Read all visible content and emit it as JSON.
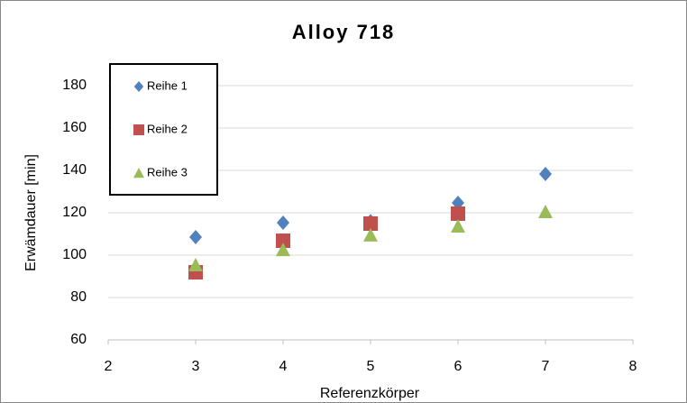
{
  "chart_data": {
    "type": "scatter",
    "title": "Alloy 718",
    "x_label": "Referenzkörper",
    "y_label": "Erwämdauer [min]",
    "xlim": [
      2,
      8
    ],
    "xticks": [
      2,
      3,
      4,
      5,
      6,
      7,
      8
    ],
    "ylim": [
      60,
      200
    ],
    "yticks": [
      60,
      80,
      100,
      120,
      140,
      160,
      180
    ],
    "grid": true,
    "legend": "upper left",
    "series": [
      {
        "name": "Reihe 1",
        "color": "#4f81bd",
        "marker": "diamond",
        "x": [
          3,
          4,
          5,
          6,
          7
        ],
        "values": [
          108.5,
          115.3,
          116,
          124.7,
          138.3
        ]
      },
      {
        "name": "Reihe 2",
        "color": "#c0504d",
        "marker": "square",
        "x": [
          3,
          4,
          5,
          6
        ],
        "values": [
          91.9,
          106.8,
          114.9,
          119.6
        ]
      },
      {
        "name": "Reihe 3",
        "color": "#9bbb59",
        "marker": "triangle",
        "x": [
          3,
          4,
          5,
          6,
          7
        ],
        "values": [
          95.3,
          102.5,
          109.4,
          113.6,
          120.4
        ]
      }
    ]
  }
}
